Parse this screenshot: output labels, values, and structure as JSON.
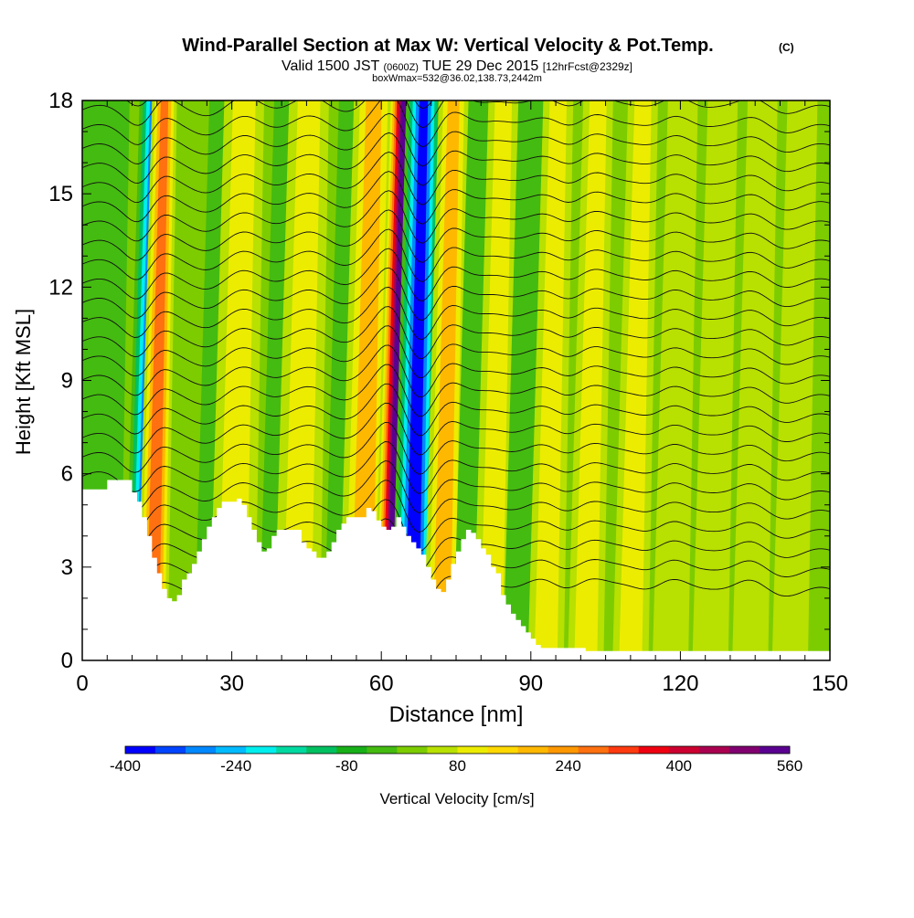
{
  "header": {
    "title": "Wind-Parallel Section at Max W: Vertical Velocity & Pot.Temp.",
    "title_mark": "(C)",
    "valid_prefix": "Valid 1500 JST",
    "valid_utc": "(0600Z)",
    "valid_date": "TUE 29 Dec 2015",
    "fcst": "[12hrFcst@2329z]",
    "box_info": "boxWmax=532@36.02,138.73,2442m"
  },
  "chart_data": {
    "type": "heatmap",
    "xlabel": "Distance [nm]",
    "ylabel": "Height [Kft MSL]",
    "xlim": [
      0,
      150
    ],
    "ylim": [
      0,
      18
    ],
    "xticks": [
      "0",
      "30",
      "60",
      "90",
      "120",
      "150"
    ],
    "yticks": [
      "0",
      "3",
      "6",
      "9",
      "12",
      "15",
      "18"
    ],
    "colorbar": {
      "label": "Vertical Velocity [cm/s]",
      "tick_labels": [
        "-400",
        "-240",
        "-80",
        "80",
        "240",
        "400",
        "560"
      ],
      "colors": [
        "#0000ff",
        "#0044ff",
        "#0088ff",
        "#00bbff",
        "#00eeee",
        "#00d9a0",
        "#00c060",
        "#18b018",
        "#44bb10",
        "#7ccc00",
        "#b8e000",
        "#ecec00",
        "#ffd800",
        "#ffb800",
        "#ff9800",
        "#ff7010",
        "#ff3a10",
        "#ee0010",
        "#cc0030",
        "#aa0050",
        "#800070",
        "#5a0090"
      ]
    },
    "terrain_kft": [
      [
        0,
        5.5
      ],
      [
        4,
        5.5
      ],
      [
        5,
        5.8
      ],
      [
        9,
        5.8
      ],
      [
        10,
        5.4
      ],
      [
        11,
        5.1
      ],
      [
        12,
        4.6
      ],
      [
        13,
        4.0
      ],
      [
        14,
        3.3
      ],
      [
        15,
        2.8
      ],
      [
        16,
        2.3
      ],
      [
        17,
        2.0
      ],
      [
        18,
        1.9
      ],
      [
        19,
        2.1
      ],
      [
        20,
        2.6
      ],
      [
        21,
        2.8
      ],
      [
        22,
        3.1
      ],
      [
        23,
        3.5
      ],
      [
        24,
        3.9
      ],
      [
        25,
        4.3
      ],
      [
        26,
        4.6
      ],
      [
        27,
        4.9
      ],
      [
        28,
        5.1
      ],
      [
        31,
        5.2
      ],
      [
        32,
        5.0
      ],
      [
        33,
        4.6
      ],
      [
        34,
        4.2
      ],
      [
        35,
        3.8
      ],
      [
        36,
        3.5
      ],
      [
        37,
        3.6
      ],
      [
        38,
        4.0
      ],
      [
        39,
        4.2
      ],
      [
        43,
        4.2
      ],
      [
        44,
        3.8
      ],
      [
        45,
        3.6
      ],
      [
        46,
        3.5
      ],
      [
        47,
        3.3
      ],
      [
        48,
        3.3
      ],
      [
        49,
        3.5
      ],
      [
        50,
        3.8
      ],
      [
        51,
        4.2
      ],
      [
        52,
        4.4
      ],
      [
        53,
        4.6
      ],
      [
        56,
        4.6
      ],
      [
        57,
        4.9
      ],
      [
        58,
        4.8
      ],
      [
        59,
        4.5
      ],
      [
        60,
        4.3
      ],
      [
        61,
        4.2
      ],
      [
        62,
        4.3
      ],
      [
        63,
        4.6
      ],
      [
        64,
        4.3
      ],
      [
        65,
        4.0
      ],
      [
        66,
        3.8
      ],
      [
        67,
        3.6
      ],
      [
        68,
        3.4
      ],
      [
        69,
        3.0
      ],
      [
        70,
        2.6
      ],
      [
        71,
        2.3
      ],
      [
        72,
        2.2
      ],
      [
        73,
        2.6
      ],
      [
        74,
        3.1
      ],
      [
        75,
        3.5
      ],
      [
        76,
        3.9
      ],
      [
        77,
        4.2
      ],
      [
        78,
        4.1
      ],
      [
        79,
        3.9
      ],
      [
        80,
        3.6
      ],
      [
        81,
        3.4
      ],
      [
        82,
        3.0
      ],
      [
        83,
        2.8
      ],
      [
        84,
        2.1
      ],
      [
        85,
        1.8
      ],
      [
        86,
        1.5
      ],
      [
        87,
        1.3
      ],
      [
        88,
        1.1
      ],
      [
        89,
        0.9
      ],
      [
        90,
        0.7
      ],
      [
        91,
        0.5
      ],
      [
        92,
        0.4
      ],
      [
        100,
        0.4
      ],
      [
        101,
        0.3
      ],
      [
        150,
        0.3
      ]
    ],
    "w_cells": [
      {
        "x": 12,
        "w": 3,
        "v": -300
      },
      {
        "x": 14,
        "w": 2.5,
        "v": 300
      },
      {
        "x": 2,
        "w": 5,
        "v": -60
      },
      {
        "x": 27,
        "w": 4,
        "v": -100
      },
      {
        "x": 30,
        "w": 4,
        "v": 180
      },
      {
        "x": 40,
        "w": 4,
        "v": -80
      },
      {
        "x": 43,
        "w": 4,
        "v": 150
      },
      {
        "x": 53,
        "w": 4,
        "v": -100
      },
      {
        "x": 56,
        "w": 4,
        "v": 200
      },
      {
        "x": 62,
        "w": 3,
        "v": 520
      },
      {
        "x": 66,
        "w": 3.5,
        "v": -400
      },
      {
        "x": 72,
        "w": 3,
        "v": 250
      },
      {
        "x": 78,
        "w": 3,
        "v": -80
      },
      {
        "x": 82,
        "w": 3,
        "v": 180
      },
      {
        "x": 88,
        "w": 3,
        "v": -40
      },
      {
        "x": 93,
        "w": 3,
        "v": 140
      },
      {
        "x": 101,
        "w": 3,
        "v": 160
      },
      {
        "x": 110,
        "w": 3,
        "v": 120
      },
      {
        "x": 118,
        "w": 3,
        "v": 110
      },
      {
        "x": 126,
        "w": 3,
        "v": 100
      },
      {
        "x": 134,
        "w": 3,
        "v": 100
      },
      {
        "x": 142,
        "w": 3,
        "v": 90
      }
    ]
  }
}
